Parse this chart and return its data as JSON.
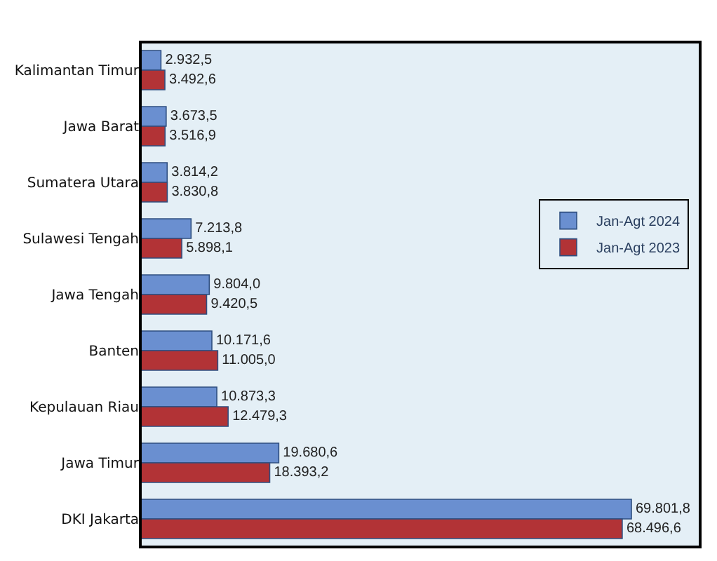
{
  "chart_data": {
    "type": "bar",
    "orientation": "horizontal",
    "categories": [
      "Kalimantan Timur",
      "Jawa Barat",
      "Sumatera Utara",
      "Sulawesi Tengah",
      "Jawa Tengah",
      "Banten",
      "Kepulauan Riau",
      "Jawa Timur",
      "DKI Jakarta"
    ],
    "series": [
      {
        "name": "Jan-Agt 2024",
        "color": "#6a8fd0",
        "values": [
          2932.5,
          3673.5,
          3814.2,
          7213.8,
          9804.0,
          10171.6,
          10873.3,
          19680.6,
          69801.8
        ],
        "value_labels": [
          "2.932,5",
          "3.673,5",
          "3.814,2",
          "7.213,8",
          "9.804,0",
          "10.171,6",
          "10.873,3",
          "19.680,6",
          "69.801,8"
        ]
      },
      {
        "name": "Jan-Agt 2023",
        "color": "#b23336",
        "values": [
          3492.6,
          3516.9,
          3830.8,
          5898.1,
          9420.5,
          11005.0,
          12479.3,
          18393.2,
          68496.6
        ],
        "value_labels": [
          "3.492,6",
          "3.516,9",
          "3.830,8",
          "5.898,1",
          "9.420,5",
          "11.005,0",
          "12.479,3",
          "18.393,2",
          "68.496,6"
        ]
      }
    ],
    "legend": "right",
    "grid": false
  }
}
